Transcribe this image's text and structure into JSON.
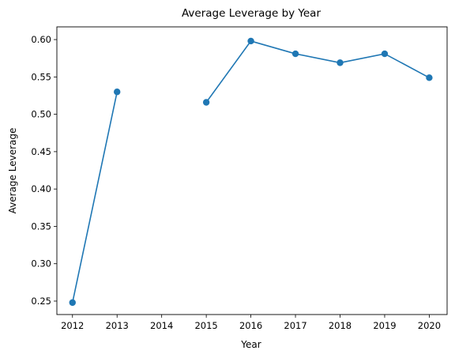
{
  "chart_data": {
    "type": "line",
    "title": "Average Leverage by Year",
    "xlabel": "Year",
    "ylabel": "Average Leverage",
    "x_ticks": [
      "2012",
      "2013",
      "2014",
      "2015",
      "2016",
      "2017",
      "2018",
      "2019",
      "2020"
    ],
    "y_ticks": [
      "0.25",
      "0.30",
      "0.35",
      "0.40",
      "0.45",
      "0.50",
      "0.55",
      "0.60"
    ],
    "xlim": [
      2011.65,
      2020.4
    ],
    "ylim": [
      0.232,
      0.617
    ],
    "grid": false,
    "series": [
      {
        "color": "#1f77b4",
        "points": [
          {
            "x": 2012,
            "y": 0.248
          },
          {
            "x": 2013,
            "y": 0.53
          },
          {
            "x": 2014,
            "y": null
          },
          {
            "x": 2015,
            "y": 0.516
          },
          {
            "x": 2016,
            "y": 0.598
          },
          {
            "x": 2017,
            "y": 0.581
          },
          {
            "x": 2018,
            "y": 0.569
          },
          {
            "x": 2019,
            "y": 0.581
          },
          {
            "x": 2020,
            "y": 0.549
          }
        ]
      }
    ]
  }
}
